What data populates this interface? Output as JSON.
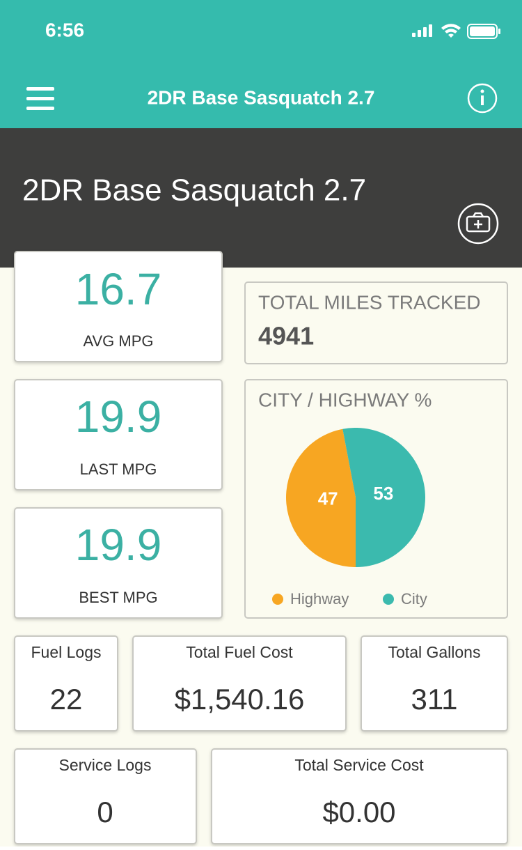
{
  "status_bar": {
    "time": "6:56"
  },
  "nav": {
    "title": "2DR Base Sasquatch 2.7"
  },
  "hero": {
    "title": "2DR Base Sasquatch 2.7"
  },
  "stats": {
    "avg_mpg": {
      "value": 16.7,
      "label": "AVG MPG"
    },
    "last_mpg": {
      "value": 19.9,
      "label": "LAST MPG"
    },
    "best_mpg": {
      "value": 19.9,
      "label": "BEST MPG"
    },
    "total_miles": {
      "label": "TOTAL MILES TRACKED",
      "value": 4941
    }
  },
  "chart_data": {
    "type": "pie",
    "title": "CITY / HIGHWAY %",
    "categories": [
      "Highway",
      "City"
    ],
    "values": [
      47,
      53
    ],
    "colors": [
      "#f7a622",
      "#3bbaae"
    ]
  },
  "summary": {
    "fuel_logs": {
      "label": "Fuel Logs",
      "value": 22
    },
    "total_fuel_cost": {
      "label": "Total Fuel Cost",
      "value": "$1,540.16"
    },
    "total_gallons": {
      "label": "Total Gallons",
      "value": 311
    },
    "service_logs": {
      "label": "Service Logs",
      "value": 0
    },
    "total_service_cost": {
      "label": "Total Service Cost",
      "value": "$0.00"
    }
  }
}
